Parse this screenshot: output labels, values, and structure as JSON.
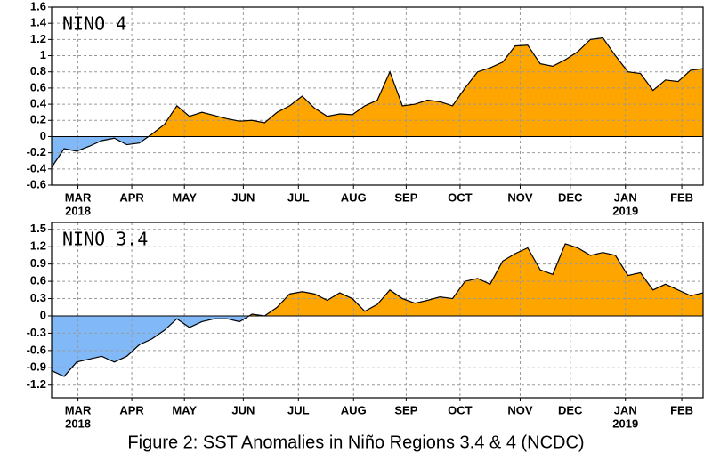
{
  "chart_data": [
    {
      "type": "area",
      "title": "NINO 4",
      "values": [
        -0.38,
        -0.15,
        -0.18,
        -0.12,
        -0.05,
        -0.02,
        -0.1,
        -0.08,
        0.03,
        0.15,
        0.38,
        0.25,
        0.3,
        0.26,
        0.22,
        0.19,
        0.2,
        0.17,
        0.3,
        0.38,
        0.5,
        0.35,
        0.25,
        0.28,
        0.27,
        0.38,
        0.45,
        0.8,
        0.38,
        0.4,
        0.45,
        0.43,
        0.38,
        0.6,
        0.8,
        0.85,
        0.92,
        1.12,
        1.13,
        0.9,
        0.87,
        0.95,
        1.05,
        1.2,
        1.22,
        1.0,
        0.8,
        0.78,
        0.57,
        0.7,
        0.68,
        0.82,
        0.84
      ],
      "positive_color": "#ffa500",
      "negative_color": "#80b8f8",
      "ylim": [
        -0.6,
        1.6
      ],
      "yticks": [
        -0.6,
        -0.4,
        -0.2,
        0,
        0.2,
        0.4,
        0.6,
        0.8,
        1,
        1.2,
        1.4,
        1.6
      ],
      "xticks": [
        {
          "value": 2.1,
          "label": "MAR"
        },
        {
          "value": 6.4,
          "label": "APR"
        },
        {
          "value": 10.6,
          "label": "MAY"
        },
        {
          "value": 15.3,
          "label": "JUN"
        },
        {
          "value": 19.7,
          "label": "JUL"
        },
        {
          "value": 24.1,
          "label": "AUG"
        },
        {
          "value": 28.3,
          "label": "SEP"
        },
        {
          "value": 32.6,
          "label": "OCT"
        },
        {
          "value": 37.4,
          "label": "NOV"
        },
        {
          "value": 41.4,
          "label": "DEC"
        },
        {
          "value": 45.8,
          "label": "JAN"
        },
        {
          "value": 50.3,
          "label": "FEB"
        }
      ],
      "year_labels": [
        {
          "value": 2.1,
          "label": "2018"
        },
        {
          "value": 45.8,
          "label": "2019"
        }
      ],
      "grid": true
    },
    {
      "type": "area",
      "title": "NINO 3.4",
      "values": [
        -0.95,
        -1.05,
        -0.8,
        -0.75,
        -0.7,
        -0.8,
        -0.7,
        -0.5,
        -0.4,
        -0.25,
        -0.05,
        -0.2,
        -0.1,
        -0.05,
        -0.05,
        -0.1,
        0.03,
        0.0,
        0.15,
        0.38,
        0.42,
        0.38,
        0.27,
        0.4,
        0.3,
        0.08,
        0.2,
        0.45,
        0.3,
        0.22,
        0.27,
        0.33,
        0.3,
        0.6,
        0.65,
        0.55,
        0.95,
        1.08,
        1.18,
        0.8,
        0.72,
        1.25,
        1.18,
        1.05,
        1.1,
        1.05,
        0.7,
        0.75,
        0.45,
        0.55,
        0.45,
        0.35,
        0.4
      ],
      "positive_color": "#ffa500",
      "negative_color": "#80b8f8",
      "ylim": [
        -1.42,
        1.62
      ],
      "yticks": [
        -1.2,
        -0.9,
        -0.6,
        -0.3,
        0,
        0.3,
        0.6,
        0.9,
        1.2,
        1.5
      ],
      "xticks": [
        {
          "value": 2.1,
          "label": "MAR"
        },
        {
          "value": 6.4,
          "label": "APR"
        },
        {
          "value": 10.6,
          "label": "MAY"
        },
        {
          "value": 15.3,
          "label": "JUN"
        },
        {
          "value": 19.7,
          "label": "JUL"
        },
        {
          "value": 24.1,
          "label": "AUG"
        },
        {
          "value": 28.3,
          "label": "SEP"
        },
        {
          "value": 32.6,
          "label": "OCT"
        },
        {
          "value": 37.4,
          "label": "NOV"
        },
        {
          "value": 41.4,
          "label": "DEC"
        },
        {
          "value": 45.8,
          "label": "JAN"
        },
        {
          "value": 50.3,
          "label": "FEB"
        }
      ],
      "year_labels": [
        {
          "value": 2.1,
          "label": "2018"
        },
        {
          "value": 45.8,
          "label": "2019"
        }
      ],
      "grid": true
    }
  ],
  "caption": "Figure 2: SST Anomalies in Niño Regions 3.4 & 4 (NCDC)"
}
